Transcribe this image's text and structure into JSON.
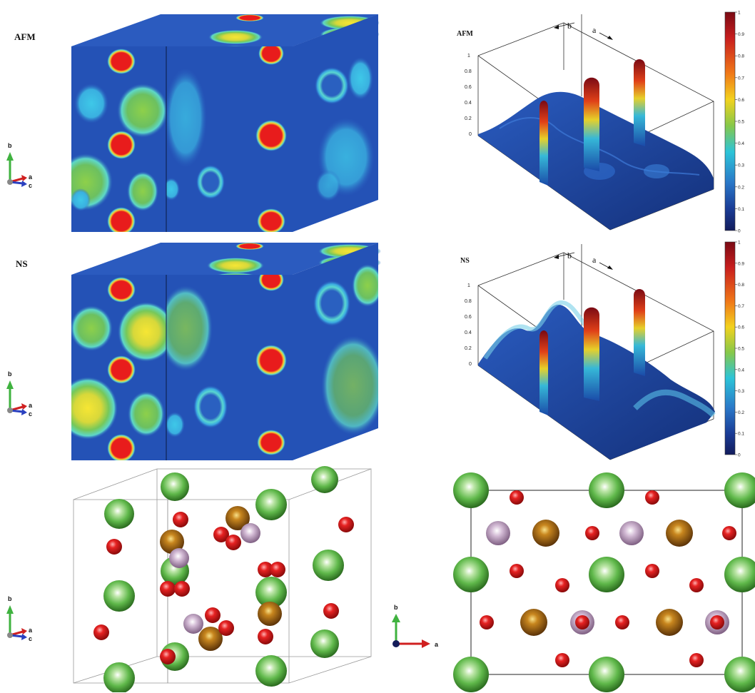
{
  "panels": {
    "afm_label": "AFM",
    "ns_label": "NS"
  },
  "plot3d": {
    "afm_label": "AFM",
    "ns_label": "NS",
    "axis_b": "b",
    "axis_a": "a",
    "z_ticks": [
      "1",
      "0.8",
      "0.6",
      "0.4",
      "0.2",
      "0"
    ]
  },
  "colorbar": {
    "ticks": [
      "1",
      "0.9",
      "0.8",
      "0.7",
      "0.6",
      "0.5",
      "0.4",
      "0.3",
      "0.2",
      "0.1",
      "0"
    ],
    "colors": [
      "#7a0a14",
      "#c81e1e",
      "#f07818",
      "#f2d21e",
      "#86c84a",
      "#2cc4d8",
      "#2a78c8",
      "#1a3c96",
      "#121c5c"
    ]
  },
  "axes_triad": {
    "b": "b",
    "a": "a",
    "c": "c"
  },
  "atom_colors": {
    "large_green": "#5fb84a",
    "small_red": "#d81818",
    "brown": "#9a6012",
    "lilac": "#b59ab8"
  }
}
